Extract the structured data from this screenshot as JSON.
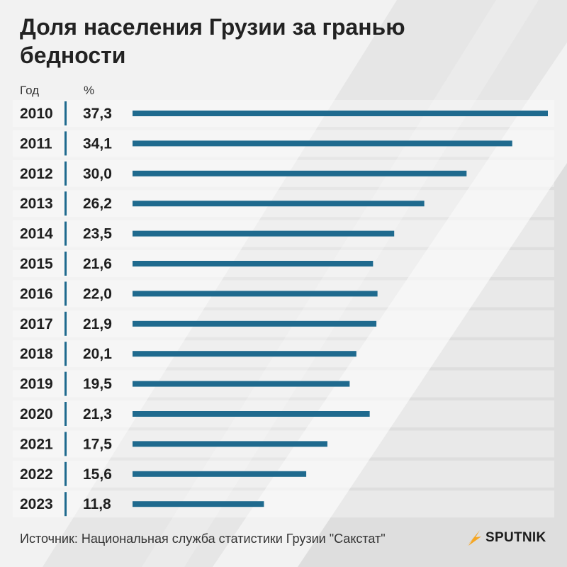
{
  "title": "Доля населения Грузии за гранью бедности",
  "column_headers": {
    "year": "Год",
    "value": "%"
  },
  "source": "Источник: Национальная служба статистики Грузии \"Сакстат\"",
  "brand": {
    "name": "SPUTNIK",
    "color": "#f5a623"
  },
  "colors": {
    "bar": "#1f6a8e",
    "separator": "#1f6a8e",
    "background": "#f2f2f2"
  },
  "chart_data": {
    "type": "bar",
    "orientation": "horizontal",
    "categories": [
      "2010",
      "2011",
      "2012",
      "2013",
      "2014",
      "2015",
      "2016",
      "2017",
      "2018",
      "2019",
      "2020",
      "2021",
      "2022",
      "2023"
    ],
    "values": [
      37.3,
      34.1,
      30.0,
      26.2,
      23.5,
      21.6,
      22.0,
      21.9,
      20.1,
      19.5,
      21.3,
      17.5,
      15.6,
      11.8
    ],
    "value_labels": [
      "37,3",
      "34,1",
      "30,0",
      "26,2",
      "23,5",
      "21,6",
      "22,0",
      "21,9",
      "20,1",
      "19,5",
      "21,3",
      "17,5",
      "15,6",
      "11,8"
    ],
    "xlim": [
      0,
      37.3
    ],
    "grid": false,
    "legend": "none"
  }
}
